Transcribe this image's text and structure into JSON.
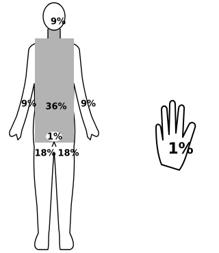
{
  "regions": [
    {
      "label": "9%"
    },
    {
      "label": "9%"
    },
    {
      "label": "36%"
    },
    {
      "label": "9%"
    },
    {
      "label": "1%"
    },
    {
      "label": "18%"
    },
    {
      "label": "18%"
    },
    {
      "label": "1%"
    }
  ]
}
